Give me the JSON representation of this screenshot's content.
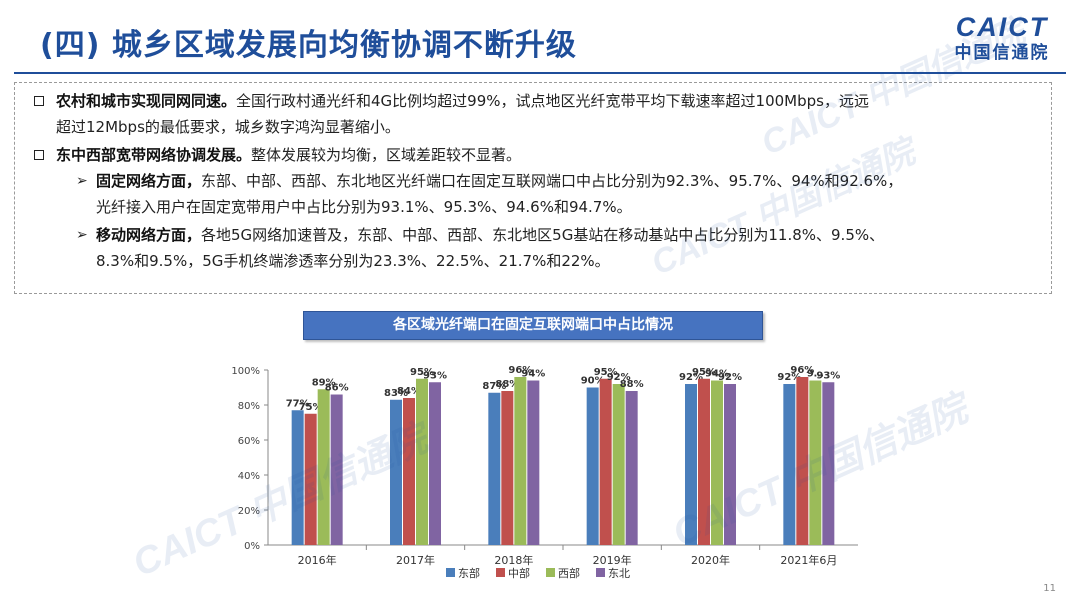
{
  "header": {
    "title": "(四) 城乡区域发展向均衡协调不断升级",
    "logo_en": "CAICT",
    "logo_cn": "中国信通院"
  },
  "content": {
    "p1_bold": "农村和城市实现同网同速。",
    "p1_line1": "全国行政村通光纤和4G比例均超过99%，试点地区光纤宽带平均下载速率超过100Mbps，远远",
    "p1_line2": "超过12Mbps的最低要求，城乡数字鸿沟显著缩小。",
    "p2_bold": "东中西部宽带网络协调发展。",
    "p2_text": "整体发展较为均衡，区域差距较不显著。",
    "s1_bold": "固定网络方面，",
    "s1_line1": "东部、中部、西部、东北地区光纤端口在固定互联网端口中占比分别为92.3%、95.7%、94%和92.6%，",
    "s1_line2": "光纤接入用户在固定宽带用户中占比分别为93.1%、95.3%、94.6%和94.7%。",
    "s2_bold": "移动网络方面，",
    "s2_line1": "各地5G网络加速普及，东部、中部、西部、东北地区5G基站在移动基站中占比分别为11.8%、9.5%、",
    "s2_line2": "8.3%和9.5%，5G手机终端渗透率分别为23.3%、22.5%、21.7%和22%。"
  },
  "watermark_text": "CAICT 中国信通院",
  "page_number": "11",
  "chart_data": {
    "type": "bar",
    "title": "各区域光纤端口在固定互联网端口中占比情况",
    "categories": [
      "2016年",
      "2017年",
      "2018年",
      "2019年",
      "2020年",
      "2021年6月"
    ],
    "series": [
      {
        "name": "东部",
        "color": "#4a7ebb",
        "values": [
          77,
          83,
          87,
          90,
          92,
          92
        ]
      },
      {
        "name": "中部",
        "color": "#c0504d",
        "values": [
          75,
          84,
          88,
          95,
          95,
          96
        ]
      },
      {
        "name": "西部",
        "color": "#9bbb59",
        "values": [
          89,
          95,
          96,
          92,
          94,
          94
        ]
      },
      {
        "name": "东北",
        "color": "#8064a2",
        "values": [
          86,
          93,
          94,
          88,
          92,
          93
        ]
      }
    ],
    "data_labels": [
      [
        "77%",
        "75%",
        "89%",
        "86%"
      ],
      [
        "83%",
        "84%",
        "95%",
        "93%"
      ],
      [
        "87%",
        "88%",
        "96%",
        "94%"
      ],
      [
        "90%",
        "95%",
        "92%",
        "88%"
      ],
      [
        "92%",
        "95%",
        "94%",
        "92%"
      ],
      [
        "92%",
        "96%",
        "9…",
        "93%"
      ]
    ],
    "yticks": [
      "0%",
      "20%",
      "40%",
      "60%",
      "80%",
      "100%"
    ],
    "ylim": [
      0,
      100
    ],
    "grid": false,
    "legend": "bottom"
  }
}
